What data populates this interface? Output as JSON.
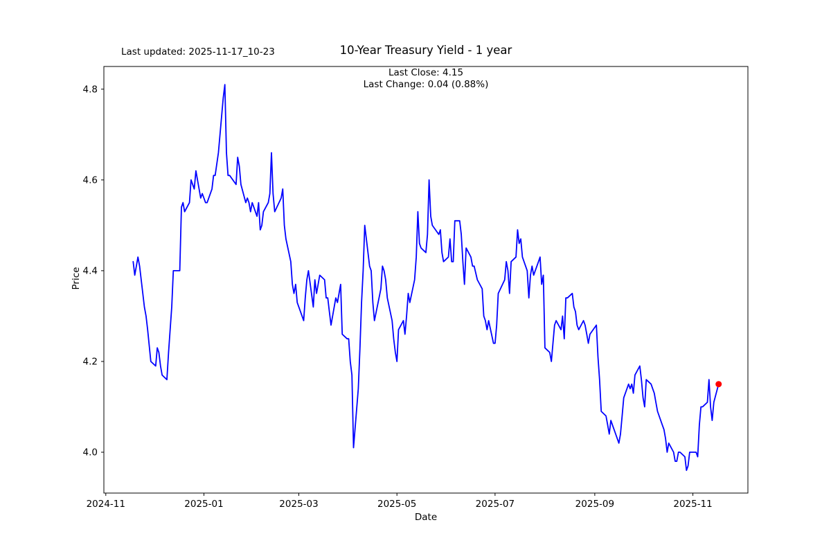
{
  "header": {
    "last_updated": "Last updated: 2025-11-17_10-23",
    "title": "10-Year Treasury Yield - 1 year",
    "subtitle_line1": "Last Close: 4.15",
    "subtitle_line2": "Last Change: 0.04 (0.88%)"
  },
  "chart_data": {
    "type": "line",
    "title": "10-Year Treasury Yield - 1 year",
    "xlabel": "Date",
    "ylabel": "Price",
    "grid": false,
    "legend": null,
    "line_color": "#0000ff",
    "line_width": 1.8,
    "last_point": {
      "date": "2025-11-17",
      "value": 4.15,
      "prev_close": 4.11,
      "marker_color": "#ff0000",
      "marker_radius": 4.5
    },
    "x_start_date": "2024-11-18",
    "xlim_day_offsets": [
      -18.2,
      382.2
    ],
    "ylim": [
      3.91,
      4.85
    ],
    "yticks": [
      4.0,
      4.2,
      4.4,
      4.6,
      4.8
    ],
    "xticks": [
      {
        "label": "2024-11",
        "day_offset": -17
      },
      {
        "label": "2025-01",
        "day_offset": 44
      },
      {
        "label": "2025-03",
        "day_offset": 103
      },
      {
        "label": "2025-05",
        "day_offset": 164
      },
      {
        "label": "2025-07",
        "day_offset": 225
      },
      {
        "label": "2025-09",
        "day_offset": 287
      },
      {
        "label": "2025-11",
        "day_offset": 348
      }
    ],
    "x_day_offsets": [
      0,
      1,
      2,
      3,
      4,
      7,
      8,
      9,
      11,
      14,
      15,
      16,
      17,
      18,
      21,
      22,
      23,
      24,
      25,
      28,
      29,
      30,
      31,
      32,
      35,
      36,
      38,
      39,
      42,
      43,
      45,
      46,
      49,
      50,
      51,
      53,
      56,
      57,
      58,
      59,
      60,
      64,
      65,
      66,
      67,
      70,
      71,
      72,
      73,
      74,
      77,
      78,
      79,
      80,
      81,
      84,
      85,
      86,
      87,
      88,
      92,
      93,
      94,
      95,
      98,
      99,
      100,
      101,
      102,
      105,
      106,
      107,
      108,
      109,
      112,
      113,
      114,
      115,
      116,
      119,
      120,
      121,
      122,
      123,
      126,
      127,
      128,
      129,
      130,
      133,
      134,
      135,
      136,
      137,
      140,
      141,
      142,
      143,
      144,
      147,
      148,
      149,
      150,
      154,
      155,
      156,
      157,
      158,
      161,
      162,
      163,
      164,
      165,
      168,
      169,
      170,
      171,
      172,
      175,
      176,
      177,
      178,
      179,
      182,
      183,
      184,
      185,
      186,
      190,
      191,
      192,
      193,
      196,
      197,
      198,
      199,
      200,
      203,
      204,
      205,
      206,
      207,
      210,
      211,
      212,
      214,
      217,
      218,
      219,
      220,
      221,
      224,
      225,
      226,
      227,
      231,
      232,
      233,
      234,
      235,
      238,
      239,
      240,
      241,
      242,
      245,
      246,
      247,
      248,
      249,
      252,
      253,
      254,
      255,
      256,
      259,
      260,
      261,
      262,
      263,
      266,
      267,
      268,
      269,
      270,
      273,
      274,
      275,
      276,
      277,
      280,
      281,
      282,
      283,
      284,
      288,
      289,
      290,
      291,
      294,
      295,
      296,
      297,
      298,
      301,
      302,
      303,
      304,
      305,
      308,
      309,
      310,
      311,
      312,
      315,
      316,
      317,
      318,
      319,
      322,
      323,
      324,
      325,
      326,
      329,
      330,
      331,
      332,
      333,
      336,
      337,
      338,
      339,
      340,
      343,
      344,
      345,
      346,
      347,
      350,
      351,
      352,
      353,
      354,
      357,
      358,
      359,
      360,
      361,
      364
    ],
    "values": [
      4.42,
      4.39,
      4.41,
      4.43,
      4.41,
      4.32,
      4.3,
      4.27,
      4.2,
      4.19,
      4.23,
      4.22,
      4.19,
      4.17,
      4.16,
      4.22,
      4.27,
      4.32,
      4.4,
      4.4,
      4.4,
      4.54,
      4.55,
      4.53,
      4.55,
      4.6,
      4.58,
      4.62,
      4.56,
      4.57,
      4.55,
      4.55,
      4.58,
      4.61,
      4.61,
      4.66,
      4.78,
      4.81,
      4.66,
      4.61,
      4.61,
      4.59,
      4.65,
      4.63,
      4.59,
      4.55,
      4.56,
      4.55,
      4.53,
      4.55,
      4.52,
      4.55,
      4.49,
      4.5,
      4.53,
      4.55,
      4.57,
      4.66,
      4.57,
      4.53,
      4.56,
      4.58,
      4.5,
      4.47,
      4.42,
      4.37,
      4.35,
      4.37,
      4.33,
      4.3,
      4.29,
      4.34,
      4.38,
      4.4,
      4.32,
      4.38,
      4.35,
      4.37,
      4.39,
      4.38,
      4.34,
      4.34,
      4.31,
      4.28,
      4.34,
      4.33,
      4.35,
      4.37,
      4.26,
      4.25,
      4.25,
      4.2,
      4.17,
      4.01,
      4.14,
      4.23,
      4.33,
      4.4,
      4.5,
      4.41,
      4.4,
      4.33,
      4.29,
      4.36,
      4.41,
      4.4,
      4.38,
      4.34,
      4.29,
      4.25,
      4.22,
      4.2,
      4.27,
      4.29,
      4.26,
      4.3,
      4.35,
      4.33,
      4.38,
      4.43,
      4.53,
      4.46,
      4.45,
      4.44,
      4.48,
      4.6,
      4.52,
      4.5,
      4.48,
      4.49,
      4.44,
      4.42,
      4.43,
      4.47,
      4.42,
      4.42,
      4.51,
      4.51,
      4.48,
      4.42,
      4.37,
      4.45,
      4.43,
      4.41,
      4.41,
      4.38,
      4.36,
      4.3,
      4.29,
      4.27,
      4.29,
      4.24,
      4.24,
      4.28,
      4.35,
      4.38,
      4.42,
      4.4,
      4.35,
      4.42,
      4.43,
      4.49,
      4.46,
      4.47,
      4.43,
      4.4,
      4.34,
      4.39,
      4.41,
      4.39,
      4.42,
      4.43,
      4.37,
      4.39,
      4.23,
      4.22,
      4.2,
      4.24,
      4.28,
      4.29,
      4.27,
      4.3,
      4.25,
      4.34,
      4.34,
      4.35,
      4.32,
      4.31,
      4.28,
      4.27,
      4.29,
      4.28,
      4.26,
      4.24,
      4.26,
      4.28,
      4.21,
      4.16,
      4.09,
      4.08,
      4.06,
      4.04,
      4.07,
      4.06,
      4.03,
      4.02,
      4.04,
      4.08,
      4.12,
      4.15,
      4.14,
      4.15,
      4.13,
      4.17,
      4.19,
      4.16,
      4.12,
      4.1,
      4.16,
      4.15,
      4.14,
      4.13,
      4.11,
      4.09,
      4.06,
      4.05,
      4.03,
      4.0,
      4.02,
      4.0,
      3.98,
      3.98,
      4.0,
      4.0,
      3.99,
      3.96,
      3.97,
      4.0,
      4.0,
      4.0,
      3.99,
      4.06,
      4.1,
      4.1,
      4.11,
      4.16,
      4.1,
      4.07,
      4.11,
      4.15
    ]
  }
}
